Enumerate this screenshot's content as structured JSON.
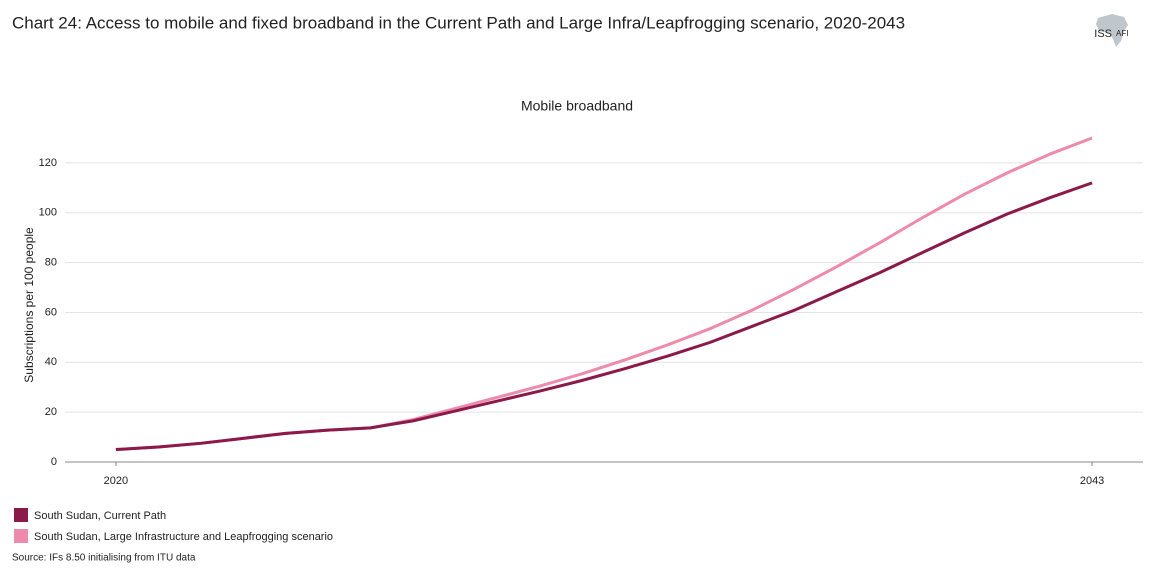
{
  "chart_data": {
    "type": "line",
    "title": "Chart 24: Access to mobile and fixed broadband in the Current Path and Large Infra/Leapfrogging scenario, 2020-2043",
    "subtitle": "Mobile broadband",
    "y_label": "Subscriptions per 100 people",
    "source": "Source: IFs 8.50 initialising from ITU data",
    "x": [
      2020,
      2021,
      2022,
      2023,
      2024,
      2025,
      2026,
      2027,
      2028,
      2029,
      2030,
      2031,
      2032,
      2033,
      2034,
      2035,
      2036,
      2037,
      2038,
      2039,
      2040,
      2041,
      2042,
      2043
    ],
    "series": [
      {
        "name": "South Sudan, Current Path",
        "color": "#8b1a4a",
        "values": [
          5,
          6,
          7.5,
          9.5,
          11.5,
          12.8,
          13.7,
          16.5,
          20.5,
          24.5,
          28.5,
          32.8,
          37.5,
          42.5,
          48,
          54.5,
          61,
          68.5,
          76,
          84,
          92,
          99.5,
          106,
          112
        ]
      },
      {
        "name": "South Sudan, Large Infrastructure and Leapfrogging scenario",
        "color": "#ee8aab",
        "values": [
          5,
          6,
          7.5,
          9.5,
          11.5,
          12.8,
          13.7,
          17,
          21.5,
          26,
          30.5,
          35.5,
          41,
          47,
          53.5,
          61,
          69.5,
          78.5,
          88,
          98,
          107.5,
          116,
          123.5,
          130
        ]
      }
    ],
    "xlim": [
      2018.8,
      2044.2
    ],
    "xticks": [
      2020,
      2043
    ],
    "ylim": [
      0,
      130
    ],
    "yticks": [
      0,
      20,
      40,
      60,
      80,
      100,
      120
    ],
    "grid": true,
    "legend": "bottom-left"
  },
  "logo": {
    "primary": "ISS",
    "secondary": "AFI"
  }
}
